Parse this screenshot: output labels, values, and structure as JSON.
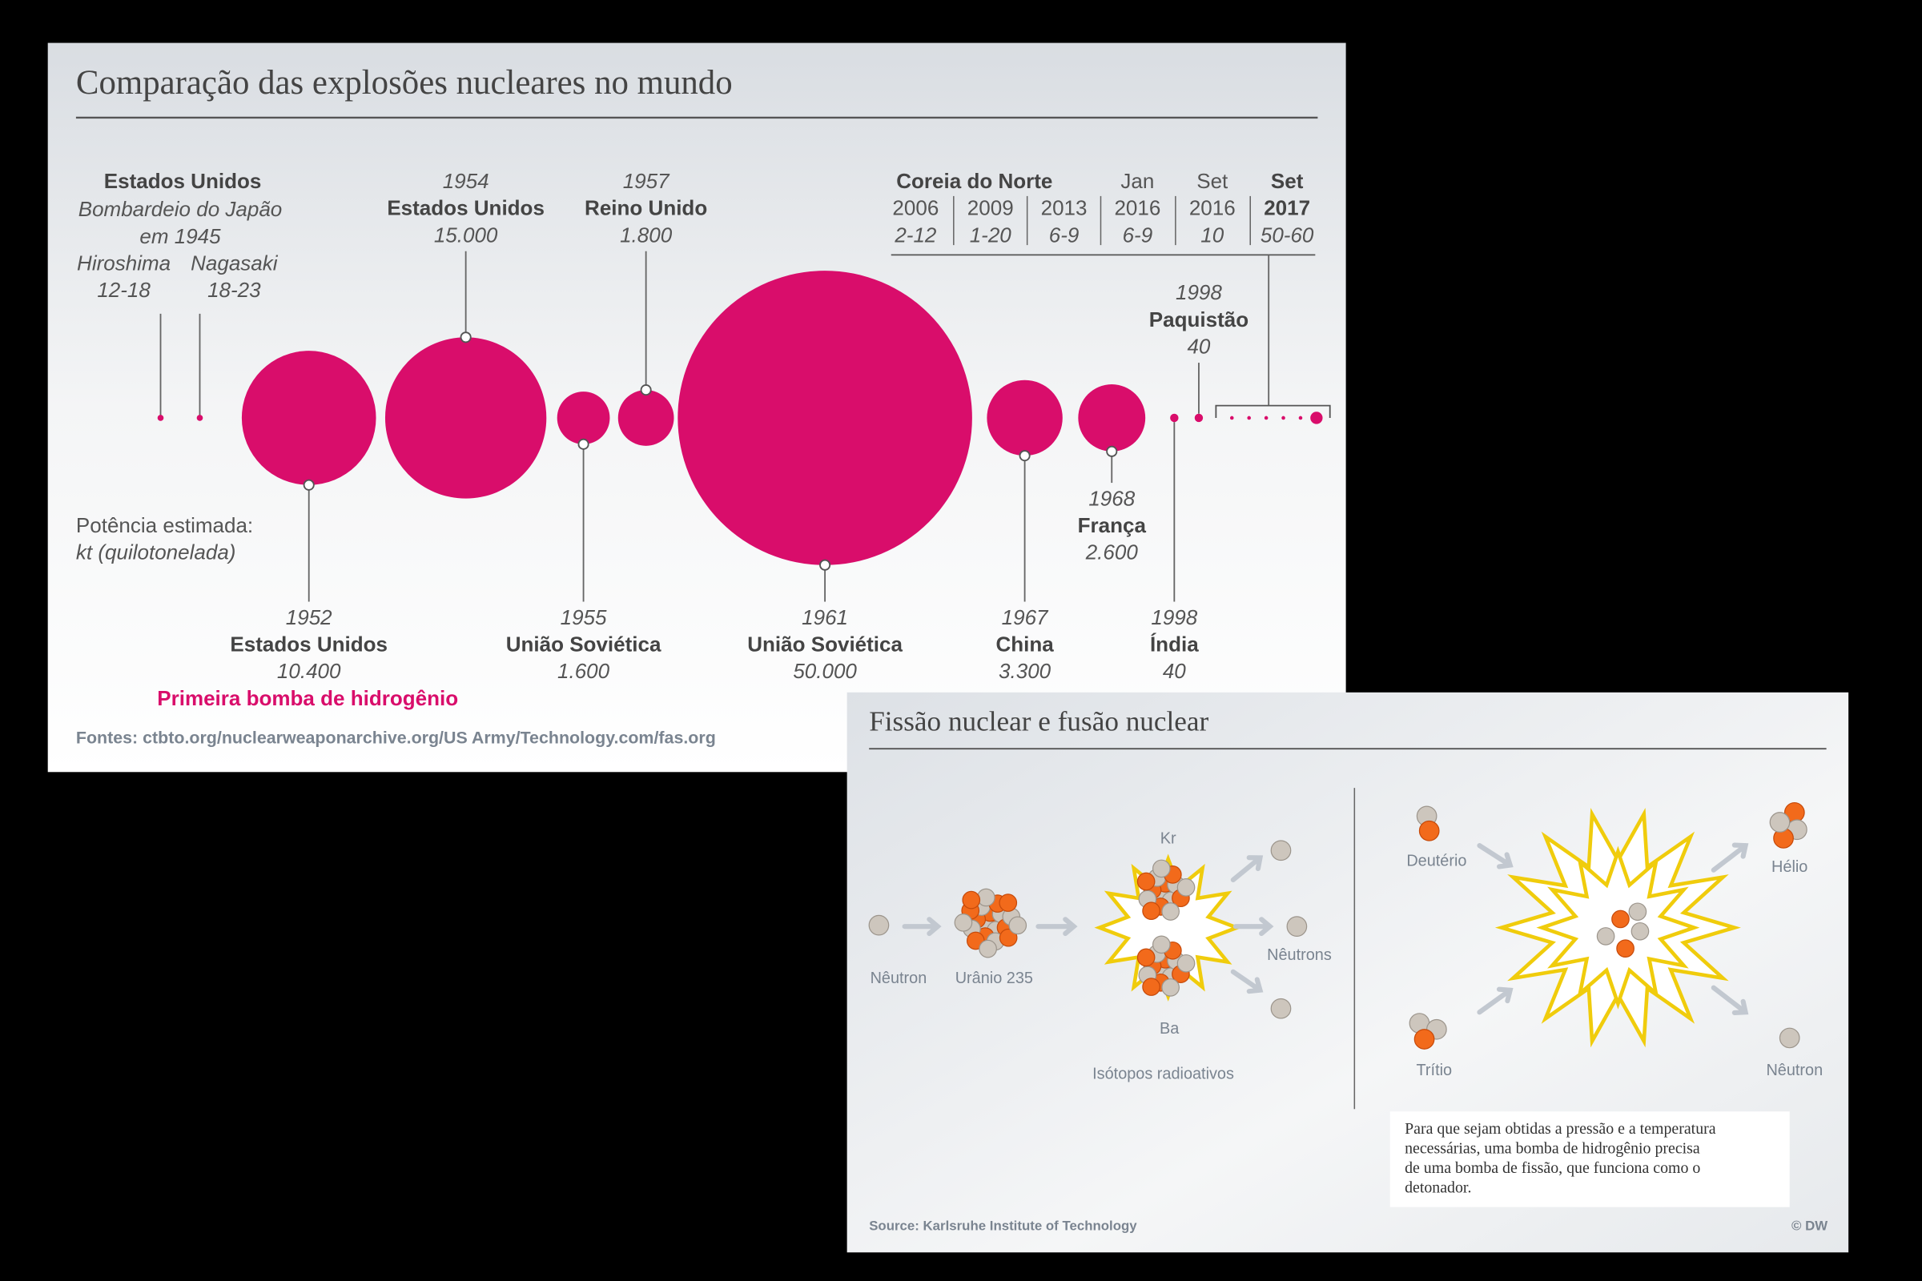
{
  "panel1": {
    "title": "Comparação das explosões nucleares no mundo",
    "japan": {
      "country": "Estados Unidos",
      "lines": [
        "Bombardeio do Japão",
        "em 1945"
      ],
      "cities": [
        {
          "name": "Hiroshima",
          "yield": "12-18"
        },
        {
          "name": "Nagasaki",
          "yield": "18-23"
        }
      ]
    },
    "explosions": [
      {
        "year": "1952",
        "country": "Estados Unidos",
        "yield_label": "10.400",
        "yield": 10400
      },
      {
        "year": "1954",
        "country": "Estados Unidos",
        "yield_label": "15.000",
        "yield": 15000
      },
      {
        "year": "1955",
        "country": "União Soviética",
        "yield_label": "1.600",
        "yield": 1600
      },
      {
        "year": "1957",
        "country": "Reino Unido",
        "yield_label": "1.800",
        "yield": 1800
      },
      {
        "year": "1961",
        "country": "União Soviética",
        "yield_label": "50.000",
        "yield": 50000
      },
      {
        "year": "1967",
        "country": "China",
        "yield_label": "3.300",
        "yield": 3300
      },
      {
        "year": "1968",
        "country": "França",
        "yield_label": "2.600",
        "yield": 2600
      },
      {
        "year": "1998",
        "country": "Índia",
        "yield_label": "40",
        "yield": 40
      },
      {
        "year": "1998",
        "country": "Paquistão",
        "yield_label": "40",
        "yield": 40
      }
    ],
    "north_korea": {
      "title": "Coreia do Norte",
      "tests": [
        {
          "year": "2006",
          "yield": "2-12"
        },
        {
          "year": "2009",
          "yield": "1-20"
        },
        {
          "year": "2013",
          "yield": "6-9"
        },
        {
          "month": "Jan",
          "year": "2016",
          "yield": "6-9"
        },
        {
          "month": "Set",
          "year": "2016",
          "yield": "10"
        },
        {
          "month": "Set",
          "year": "2017",
          "yield": "50-60"
        }
      ]
    },
    "legend": [
      "Potência estimada:",
      "kt (quilotonelada)"
    ],
    "highlight": "Primeira bomba de hidrogênio",
    "source": "Fontes: ctbto.org/nuclearweaponarchive.org/US Army/Technology.com/fas.org"
  },
  "panel2": {
    "title": "Fissão nuclear e fusão nuclear",
    "fission": {
      "neutron": "Nêutron",
      "uranium": "Urânio 235",
      "kr": "Kr",
      "ba": "Ba",
      "neutrons": "Nêutrons",
      "isotopes": "Isótopos radioativos"
    },
    "fusion": {
      "deuterium": "Deutério",
      "tritium": "Trítio",
      "helium": "Hélio",
      "neutron": "Nêutron"
    },
    "note": [
      "Para que sejam obtidas a pressão e a temperatura",
      "necessárias, uma bomba de hidrogênio precisa",
      "de uma bomba de fissão, que funciona como o",
      "detonador."
    ],
    "source": "Source: Karlsruhe Institute of Technology",
    "credit": "© DW"
  }
}
